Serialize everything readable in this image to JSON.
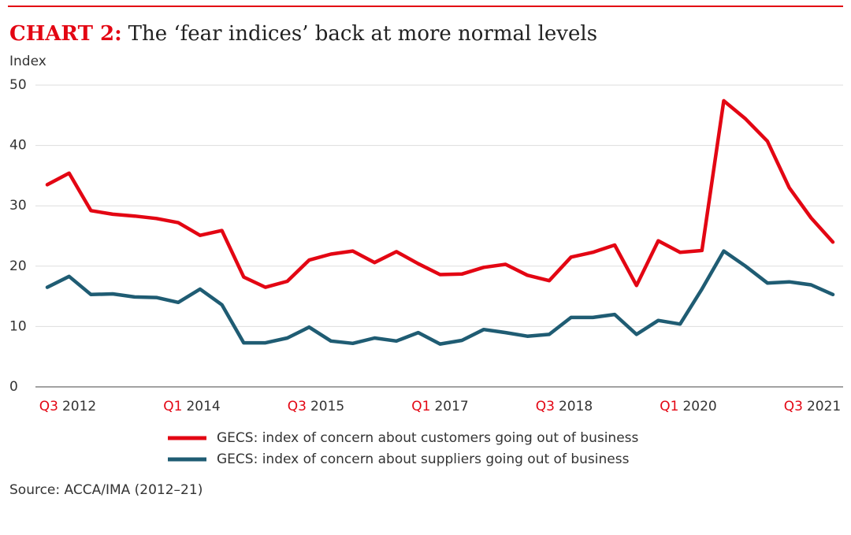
{
  "chart_data": {
    "type": "line",
    "title_prefix": "CHART 2:",
    "title": "The ‘fear indices’ back at more normal levels",
    "y_label": "Index",
    "source": "Source: ACCA/IMA (2012–21)",
    "categories": [
      "Q3 2012",
      null,
      null,
      null,
      null,
      null,
      "Q1 2014",
      null,
      null,
      null,
      null,
      null,
      "Q3 2015",
      null,
      null,
      null,
      null,
      null,
      "Q1 2017",
      null,
      null,
      null,
      null,
      null,
      "Q3 2018",
      null,
      null,
      null,
      null,
      null,
      "Q1 2020",
      null,
      null,
      null,
      null,
      null,
      "Q3 2021"
    ],
    "series": [
      {
        "name": "GECS: index of concern about customers going out of business",
        "color": "#e30613",
        "values": [
          33.5,
          35.4,
          29.2,
          28.6,
          28.3,
          27.9,
          27.2,
          25.1,
          25.9,
          18.2,
          16.5,
          17.5,
          21.0,
          22.0,
          22.5,
          20.6,
          22.4,
          20.4,
          18.6,
          18.7,
          19.8,
          20.3,
          18.5,
          17.6,
          21.5,
          22.3,
          23.5,
          16.8,
          24.2,
          22.3,
          22.6,
          47.4,
          44.4,
          40.7,
          33.0,
          28.0,
          24.0
        ]
      },
      {
        "name": "GECS: index of concern about suppliers going out of business",
        "color": "#1f5c73",
        "values": [
          16.5,
          18.3,
          15.3,
          15.4,
          14.9,
          14.8,
          14.0,
          16.2,
          13.6,
          7.3,
          7.3,
          8.1,
          9.9,
          7.6,
          7.2,
          8.1,
          7.6,
          9.0,
          7.1,
          7.7,
          9.5,
          9.0,
          8.4,
          8.7,
          11.5,
          11.5,
          12.0,
          8.7,
          11.0,
          10.4,
          16.2,
          22.5,
          20.0,
          17.2,
          17.4,
          16.9,
          15.3
        ]
      }
    ],
    "ylim": [
      0,
      50
    ],
    "yticks": [
      0,
      10,
      20,
      30,
      40,
      50
    ],
    "grid": true
  }
}
